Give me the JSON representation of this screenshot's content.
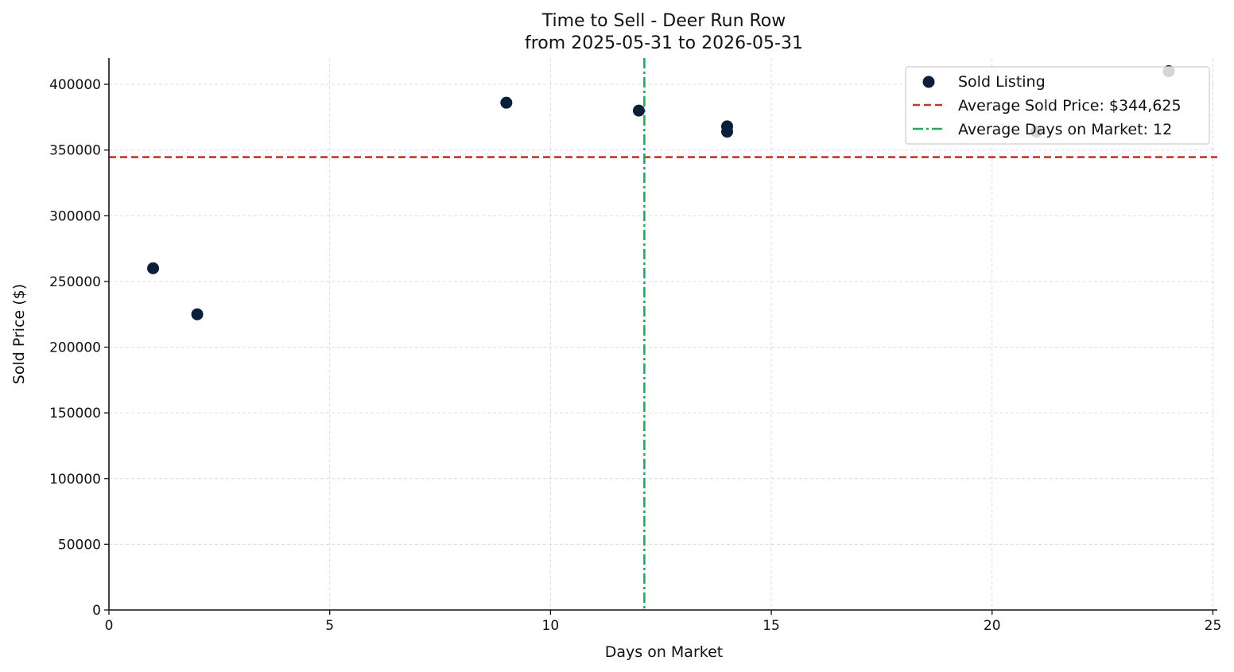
{
  "chart_data": {
    "type": "scatter",
    "title": "Time to Sell - Deer Run Row",
    "subtitle": "from 2025-05-31 to 2026-05-31",
    "xlabel": "Days on Market",
    "ylabel": "Sold Price ($)",
    "xlim": [
      0,
      25.1
    ],
    "ylim": [
      0,
      420000
    ],
    "xticks": [
      0,
      5,
      10,
      15,
      20,
      25
    ],
    "yticks": [
      0,
      50000,
      100000,
      150000,
      200000,
      250000,
      300000,
      350000,
      400000
    ],
    "grid": true,
    "legend_position": "top-right",
    "series": [
      {
        "name": "Sold Listing",
        "color": "#0b1f3a",
        "points": [
          {
            "x": 1,
            "y": 260000
          },
          {
            "x": 2,
            "y": 225000
          },
          {
            "x": 9,
            "y": 386000
          },
          {
            "x": 12,
            "y": 380000
          },
          {
            "x": 14,
            "y": 368000
          },
          {
            "x": 14,
            "y": 364000
          },
          {
            "x": 21,
            "y": 364000
          },
          {
            "x": 24,
            "y": 410000
          }
        ]
      }
    ],
    "reference_lines": {
      "avg_price": {
        "label": "Average Sold Price: $344,625",
        "value": 344625,
        "color": "#c0392b",
        "style": "dashed"
      },
      "avg_days": {
        "label": "Average Days on Market: 12",
        "value": 12.125,
        "color": "#27a85f",
        "style": "dashdot"
      }
    }
  }
}
